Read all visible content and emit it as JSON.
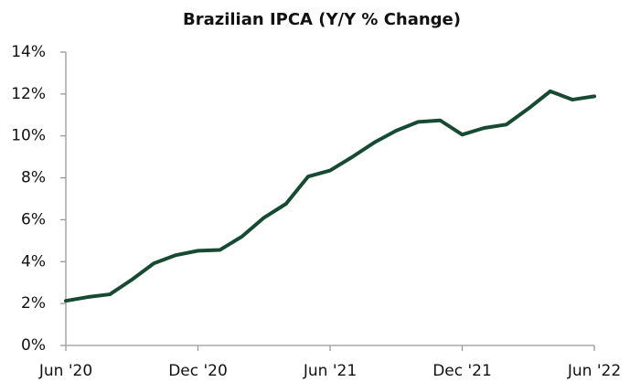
{
  "chart_data": {
    "type": "line",
    "title": "Brazilian IPCA (Y/Y % Change)",
    "categories": [
      "Jun '20",
      null,
      null,
      null,
      null,
      null,
      "Dec '20",
      null,
      null,
      null,
      null,
      null,
      "Jun '21",
      null,
      null,
      null,
      null,
      null,
      "Dec '21",
      null,
      null,
      null,
      null,
      null,
      "Jun '22"
    ],
    "series": [
      {
        "name": "IPCA",
        "color": "#174a33",
        "values": [
          2.13,
          2.31,
          2.44,
          3.14,
          3.92,
          4.31,
          4.52,
          4.56,
          5.2,
          6.1,
          6.76,
          8.06,
          8.35,
          8.99,
          9.68,
          10.25,
          10.67,
          10.74,
          10.06,
          10.38,
          10.54,
          11.3,
          12.13,
          11.73,
          11.89
        ]
      }
    ],
    "ylim": [
      0,
      14
    ],
    "yticks": [
      {
        "value": 0,
        "label": "0%"
      },
      {
        "value": 2,
        "label": "2%"
      },
      {
        "value": 4,
        "label": "4%"
      },
      {
        "value": 6,
        "label": "6%"
      },
      {
        "value": 8,
        "label": "8%"
      },
      {
        "value": 10,
        "label": "10%"
      },
      {
        "value": 12,
        "label": "12%"
      },
      {
        "value": 14,
        "label": "14%"
      }
    ],
    "grid": false
  }
}
